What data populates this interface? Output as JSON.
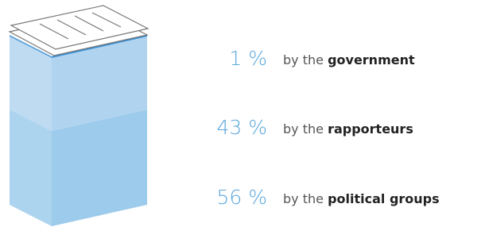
{
  "chart_data": {
    "type": "stacked-box",
    "categories": [
      "government",
      "rapporteurs",
      "political groups"
    ],
    "label_prefix": "by the",
    "values": [
      1,
      43,
      56
    ],
    "value_labels": [
      "1 %",
      "43 %",
      "56 %"
    ],
    "colors": [
      "#3b8fd2",
      "#b0d3f0",
      "#9ccbec"
    ]
  }
}
